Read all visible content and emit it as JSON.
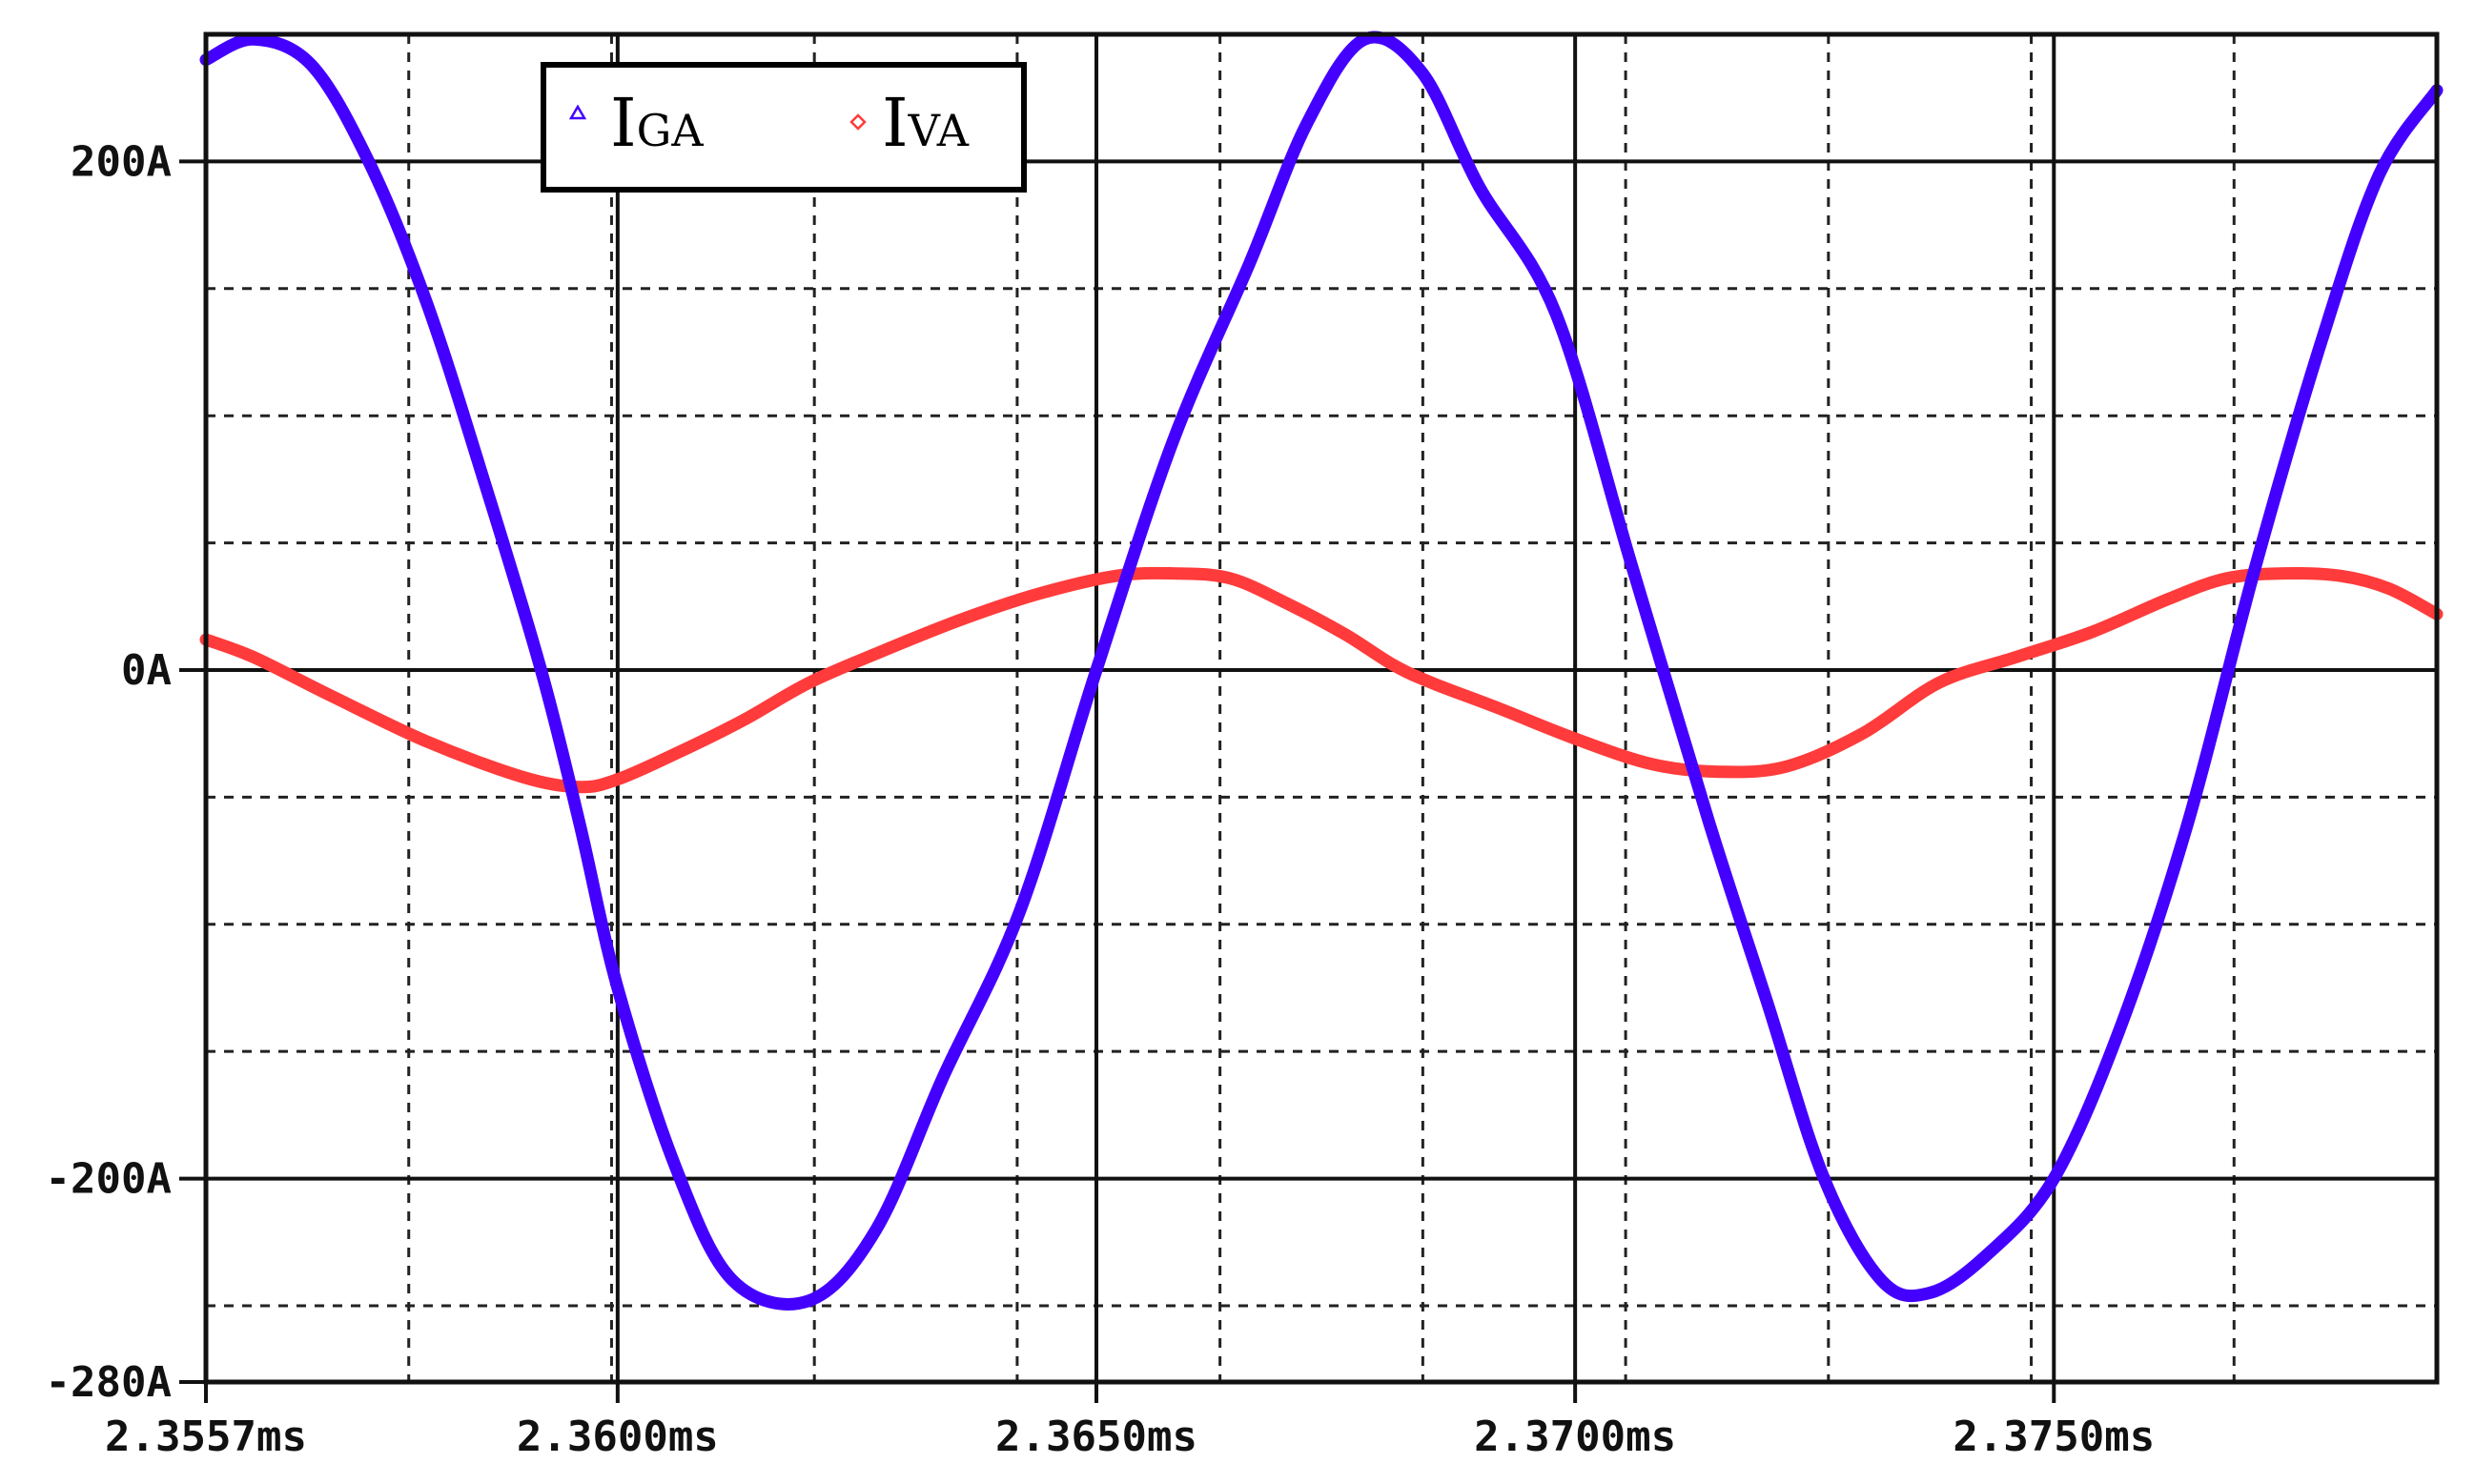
{
  "chart_data": {
    "type": "line",
    "title": "",
    "xlabel": "",
    "ylabel": "",
    "xlim": [
      2.3557,
      2.379
    ],
    "ylim": [
      -280,
      250
    ],
    "grid": true,
    "legend": {
      "placement": "top-left"
    },
    "x_ticks": [
      {
        "value": 2.3557,
        "label": "2.3557ms"
      },
      {
        "value": 2.36,
        "label": "2.3600ms"
      },
      {
        "value": 2.365,
        "label": "2.3650ms"
      },
      {
        "value": 2.37,
        "label": "2.3700ms"
      },
      {
        "value": 2.375,
        "label": "2.3750ms"
      }
    ],
    "y_ticks": [
      {
        "value": 200,
        "label": "200A"
      },
      {
        "value": 0,
        "label": "0A"
      },
      {
        "value": -200,
        "label": "-200A"
      },
      {
        "value": -280,
        "label": "-280A"
      }
    ],
    "series": [
      {
        "name": "IGA",
        "name_main": "I",
        "name_sub": "GA",
        "color": "#4400ff",
        "marker": "triangle",
        "x": [
          2.3557,
          2.3562,
          2.3568,
          2.3574,
          2.358,
          2.3586,
          2.3592,
          2.3596,
          2.36,
          2.3606,
          2.3612,
          2.362,
          2.3627,
          2.3634,
          2.3642,
          2.365,
          2.3658,
          2.3666,
          2.3672,
          2.3678,
          2.3684,
          2.369,
          2.3698,
          2.3706,
          2.3714,
          2.372,
          2.3726,
          2.3732,
          2.3737,
          2.3743,
          2.375,
          2.3757,
          2.3764,
          2.3771,
          2.3778,
          2.3784,
          2.379
        ],
        "y": [
          240,
          248,
          238,
          200,
          145,
          75,
          0,
          -60,
          -125,
          -195,
          -240,
          -248,
          -220,
          -160,
          -95,
          0,
          90,
          160,
          215,
          248,
          235,
          190,
          140,
          40,
          -60,
          -130,
          -200,
          -240,
          -245,
          -230,
          -200,
          -140,
          -60,
          40,
          130,
          195,
          228
        ]
      },
      {
        "name": "IVA",
        "name_main": "I",
        "name_sub": "VA",
        "color": "#ff3b3b",
        "marker": "diamond",
        "x": [
          2.3557,
          2.3562,
          2.357,
          2.358,
          2.359,
          2.3596,
          2.36,
          2.3606,
          2.3613,
          2.362,
          2.3628,
          2.3636,
          2.3644,
          2.3652,
          2.3658,
          2.3664,
          2.367,
          2.3676,
          2.3681,
          2.3685,
          2.3692,
          2.37,
          2.3708,
          2.3715,
          2.3722,
          2.373,
          2.3738,
          2.3746,
          2.3754,
          2.3762,
          2.3768,
          2.3774,
          2.378,
          2.3785,
          2.379
        ],
        "y": [
          12,
          5,
          -10,
          -28,
          -42,
          -46,
          -43,
          -33,
          -20,
          -5,
          8,
          20,
          30,
          37,
          38,
          36,
          26,
          14,
          2,
          -5,
          -15,
          -27,
          -37,
          -40,
          -38,
          -25,
          -5,
          5,
          15,
          28,
          36,
          38,
          37,
          32,
          22
        ]
      }
    ]
  }
}
